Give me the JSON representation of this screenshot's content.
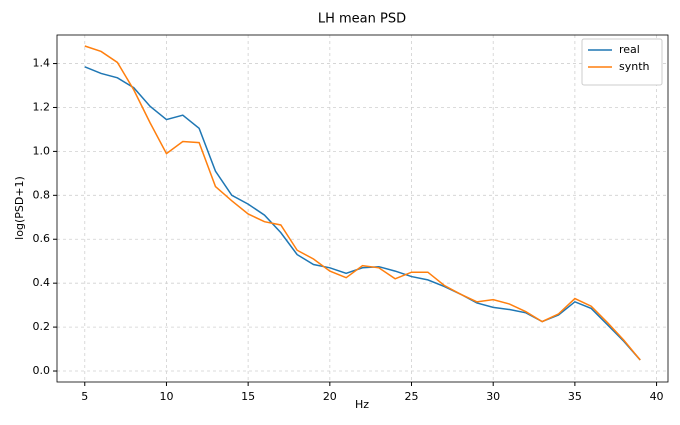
{
  "chart_data": {
    "type": "line",
    "title": "LH mean PSD",
    "xlabel": "Hz",
    "ylabel": "log(PSD+1)",
    "x": [
      5,
      6,
      7,
      8,
      9,
      10,
      11,
      12,
      13,
      14,
      15,
      16,
      17,
      18,
      19,
      20,
      21,
      22,
      23,
      24,
      25,
      26,
      27,
      28,
      29,
      30,
      31,
      32,
      33,
      34,
      35,
      36,
      37,
      38,
      39
    ],
    "series": [
      {
        "name": "real",
        "color": "#1f77b4",
        "values": [
          1.385,
          1.355,
          1.335,
          1.29,
          1.205,
          1.145,
          1.165,
          1.105,
          0.91,
          0.8,
          0.76,
          0.71,
          0.63,
          0.53,
          0.485,
          0.47,
          0.445,
          0.47,
          0.475,
          0.455,
          0.43,
          0.415,
          0.385,
          0.35,
          0.31,
          0.29,
          0.28,
          0.265,
          0.225,
          0.255,
          0.315,
          0.285,
          0.21,
          0.135,
          0.05
        ]
      },
      {
        "name": "synth",
        "color": "#ff7f0e",
        "values": [
          1.48,
          1.455,
          1.405,
          1.28,
          1.13,
          0.99,
          1.045,
          1.04,
          0.84,
          0.775,
          0.715,
          0.68,
          0.665,
          0.55,
          0.51,
          0.455,
          0.425,
          0.48,
          0.47,
          0.42,
          0.45,
          0.45,
          0.39,
          0.35,
          0.315,
          0.325,
          0.305,
          0.27,
          0.225,
          0.26,
          0.33,
          0.295,
          0.22,
          0.14,
          0.05
        ]
      }
    ],
    "xlim": [
      3.3,
      40.7
    ],
    "xticks": [
      5,
      10,
      15,
      20,
      25,
      30,
      35,
      40
    ],
    "ylim": [
      -0.05,
      1.53
    ],
    "yticks": [
      {
        "value": 0,
        "label": "0.0"
      },
      0.2,
      0.4,
      0.6,
      0.8,
      {
        "value": 1,
        "label": "1.0"
      },
      1.2,
      1.4
    ],
    "grid": true,
    "legend": "upper right"
  }
}
